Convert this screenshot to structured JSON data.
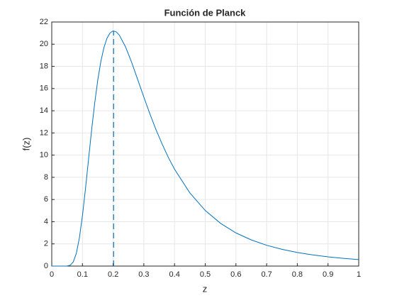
{
  "chart_data": {
    "type": "line",
    "title": "Función de Planck",
    "x_label": "z",
    "y_label": "f(z)",
    "x": [
      0,
      0.03,
      0.04,
      0.05,
      0.06,
      0.07,
      0.08,
      0.09,
      0.1,
      0.11,
      0.12,
      0.13,
      0.14,
      0.15,
      0.16,
      0.17,
      0.18,
      0.19,
      0.2,
      0.21,
      0.22,
      0.24,
      0.26,
      0.28,
      0.3,
      0.32,
      0.34,
      0.36,
      0.38,
      0.4,
      0.45,
      0.5,
      0.55,
      0.6,
      0.65,
      0.7,
      0.75,
      0.8,
      0.85,
      0.9,
      0.95,
      1.0
    ],
    "series": [
      {
        "color": "#0072bd",
        "values": [
          0,
          0,
          0.0001,
          0.0066,
          0.074,
          0.372,
          1.137,
          2.531,
          4.54,
          6.997,
          9.662,
          12.3,
          14.71,
          16.78,
          18.45,
          19.7,
          20.54,
          21.02,
          21.2,
          21.11,
          20.82,
          19.78,
          18.38,
          16.81,
          15.23,
          13.7,
          12.27,
          10.97,
          9.78,
          8.73,
          6.59,
          5.01,
          3.85,
          2.99,
          2.36,
          1.875,
          1.508,
          1.226,
          1.005,
          0.831,
          0.693,
          0.582
        ]
      }
    ],
    "peak": {
      "x": 0.2014,
      "y": 21.2
    },
    "xlim": [
      0,
      1
    ],
    "xticks": [
      0,
      0.1,
      0.2,
      0.3,
      0.4,
      0.5,
      0.6,
      0.7,
      0.8,
      0.9,
      1
    ],
    "ylim": [
      0,
      22
    ],
    "yticks": [
      0,
      2,
      4,
      6,
      8,
      10,
      12,
      14,
      16,
      18,
      20,
      22
    ],
    "grid": true
  }
}
